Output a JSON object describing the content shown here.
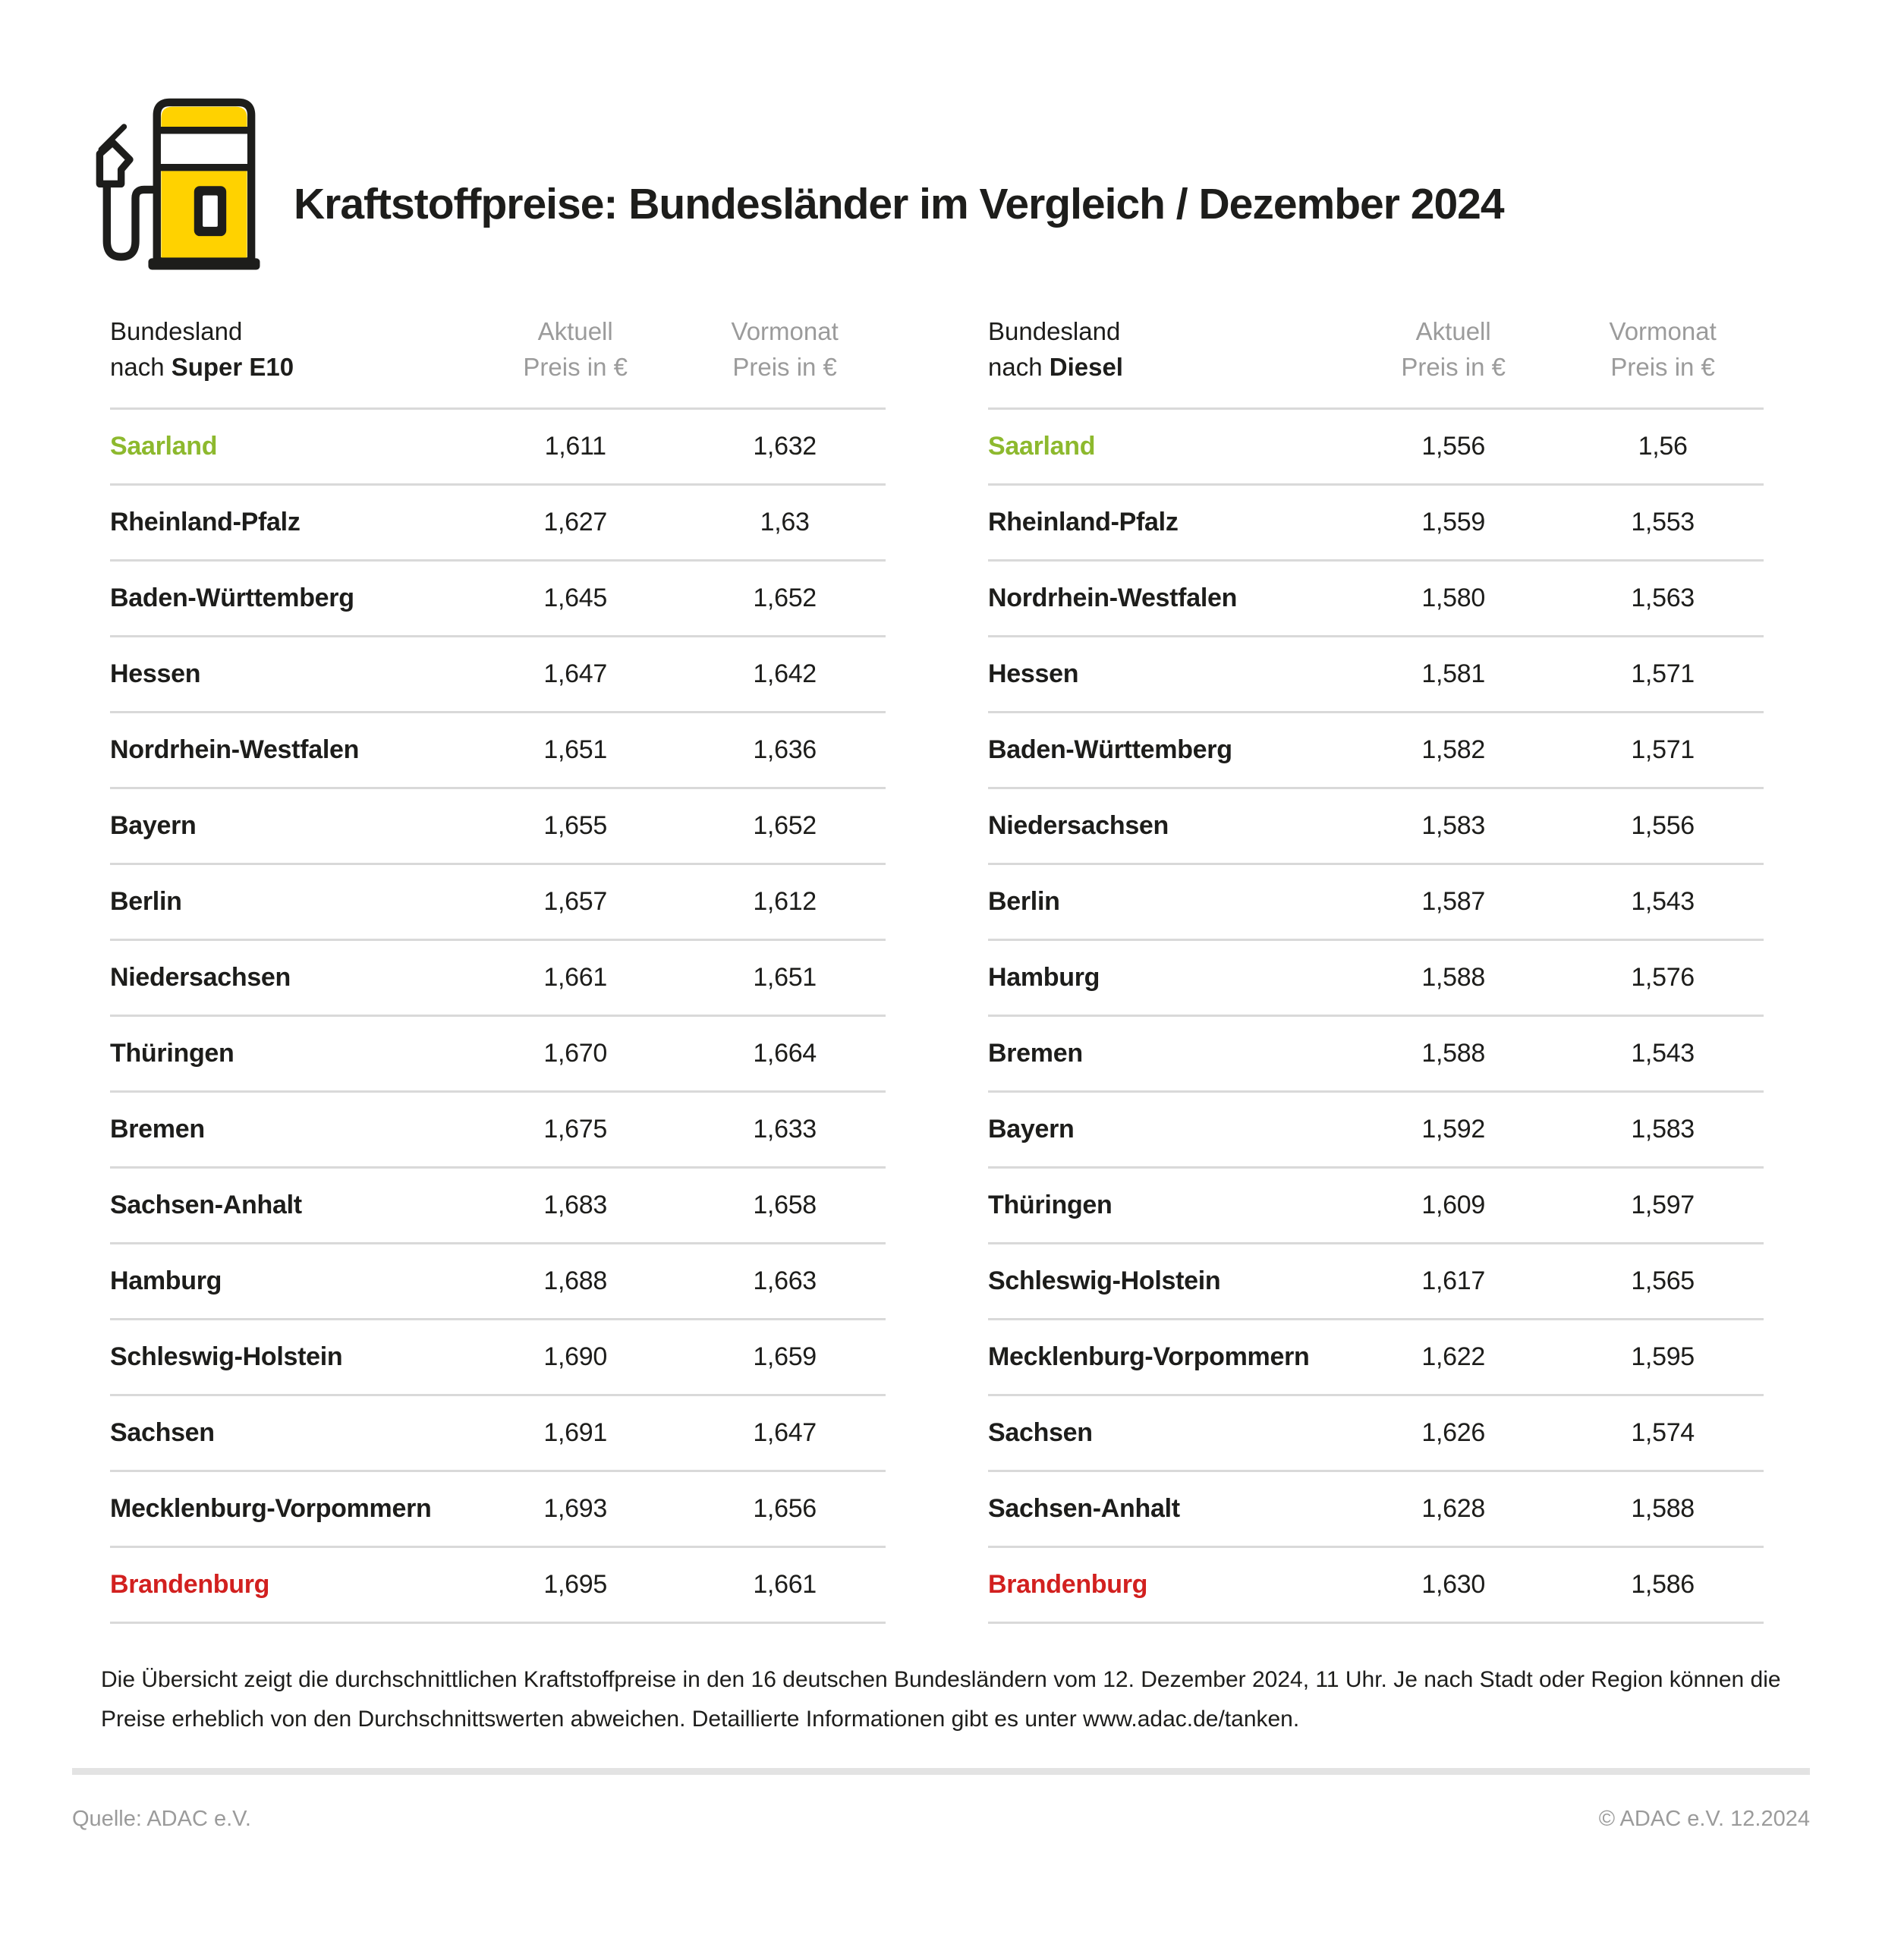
{
  "colors": {
    "yellow": "#FFD200",
    "green": "#8DB92E",
    "red": "#D2201F",
    "gray": "#9B9B9B",
    "divider": "#D9D9D9"
  },
  "header": {
    "title": "Kraftstoffpreise: Bundesländer im Vergleich / Dezember 2024",
    "logo_icon": "fuel-pump-icon"
  },
  "tables": [
    {
      "fuel": "Super E10",
      "col1_line1": "Bundesland",
      "col1_line2_prefix": "nach ",
      "col2_line1": "Aktuell",
      "col2_line2": "Preis in €",
      "col3_line1": "Vormonat",
      "col3_line2": "Preis in €",
      "rows": [
        {
          "state": "Saarland",
          "aktuell": "1,611",
          "vormonat": "1,632",
          "highlight": "green"
        },
        {
          "state": "Rheinland-Pfalz",
          "aktuell": "1,627",
          "vormonat": "1,63",
          "highlight": ""
        },
        {
          "state": "Baden-Württemberg",
          "aktuell": "1,645",
          "vormonat": "1,652",
          "highlight": ""
        },
        {
          "state": "Hessen",
          "aktuell": "1,647",
          "vormonat": "1,642",
          "highlight": ""
        },
        {
          "state": "Nordrhein-Westfalen",
          "aktuell": "1,651",
          "vormonat": "1,636",
          "highlight": ""
        },
        {
          "state": "Bayern",
          "aktuell": "1,655",
          "vormonat": "1,652",
          "highlight": ""
        },
        {
          "state": "Berlin",
          "aktuell": "1,657",
          "vormonat": "1,612",
          "highlight": ""
        },
        {
          "state": "Niedersachsen",
          "aktuell": "1,661",
          "vormonat": "1,651",
          "highlight": ""
        },
        {
          "state": "Thüringen",
          "aktuell": "1,670",
          "vormonat": "1,664",
          "highlight": ""
        },
        {
          "state": "Bremen",
          "aktuell": "1,675",
          "vormonat": "1,633",
          "highlight": ""
        },
        {
          "state": "Sachsen-Anhalt",
          "aktuell": "1,683",
          "vormonat": "1,658",
          "highlight": ""
        },
        {
          "state": "Hamburg",
          "aktuell": "1,688",
          "vormonat": "1,663",
          "highlight": ""
        },
        {
          "state": "Schleswig-Holstein",
          "aktuell": "1,690",
          "vormonat": "1,659",
          "highlight": ""
        },
        {
          "state": "Sachsen",
          "aktuell": "1,691",
          "vormonat": "1,647",
          "highlight": ""
        },
        {
          "state": "Mecklenburg-Vorpommern",
          "aktuell": "1,693",
          "vormonat": "1,656",
          "highlight": ""
        },
        {
          "state": "Brandenburg",
          "aktuell": "1,695",
          "vormonat": "1,661",
          "highlight": "red"
        }
      ]
    },
    {
      "fuel": "Diesel",
      "col1_line1": "Bundesland",
      "col1_line2_prefix": "nach ",
      "col2_line1": "Aktuell",
      "col2_line2": "Preis in €",
      "col3_line1": "Vormonat",
      "col3_line2": "Preis in €",
      "rows": [
        {
          "state": "Saarland",
          "aktuell": "1,556",
          "vormonat": "1,56",
          "highlight": "green"
        },
        {
          "state": "Rheinland-Pfalz",
          "aktuell": "1,559",
          "vormonat": "1,553",
          "highlight": ""
        },
        {
          "state": "Nordrhein-Westfalen",
          "aktuell": "1,580",
          "vormonat": "1,563",
          "highlight": ""
        },
        {
          "state": "Hessen",
          "aktuell": "1,581",
          "vormonat": "1,571",
          "highlight": ""
        },
        {
          "state": "Baden-Württemberg",
          "aktuell": "1,582",
          "vormonat": "1,571",
          "highlight": ""
        },
        {
          "state": "Niedersachsen",
          "aktuell": "1,583",
          "vormonat": "1,556",
          "highlight": ""
        },
        {
          "state": "Berlin",
          "aktuell": "1,587",
          "vormonat": "1,543",
          "highlight": ""
        },
        {
          "state": "Hamburg",
          "aktuell": "1,588",
          "vormonat": "1,576",
          "highlight": ""
        },
        {
          "state": "Bremen",
          "aktuell": "1,588",
          "vormonat": "1,543",
          "highlight": ""
        },
        {
          "state": "Bayern",
          "aktuell": "1,592",
          "vormonat": "1,583",
          "highlight": ""
        },
        {
          "state": "Thüringen",
          "aktuell": "1,609",
          "vormonat": "1,597",
          "highlight": ""
        },
        {
          "state": "Schleswig-Holstein",
          "aktuell": "1,617",
          "vormonat": "1,565",
          "highlight": ""
        },
        {
          "state": "Mecklenburg-Vorpommern",
          "aktuell": "1,622",
          "vormonat": "1,595",
          "highlight": ""
        },
        {
          "state": "Sachsen",
          "aktuell": "1,626",
          "vormonat": "1,574",
          "highlight": ""
        },
        {
          "state": "Sachsen-Anhalt",
          "aktuell": "1,628",
          "vormonat": "1,588",
          "highlight": ""
        },
        {
          "state": "Brandenburg",
          "aktuell": "1,630",
          "vormonat": "1,586",
          "highlight": "red"
        }
      ]
    }
  ],
  "footnote": "Die Übersicht zeigt die durchschnittlichen Kraftstoffpreise in den 16 deutschen Bundesländern vom 12. Dezember 2024, 11 Uhr. Je nach Stadt oder Region können die Preise erheblich von den Durchschnittswerten abweichen. Detaillierte Informationen gibt es unter www.adac.de/tanken.",
  "footer": {
    "source": "Quelle: ADAC e.V.",
    "copyright": "© ADAC e.V. 12.2024"
  },
  "chart_data": [
    {
      "type": "table",
      "title": "Kraftstoffpreise Bundesländer im Vergleich Dezember 2024 – Super E10",
      "columns": [
        "Bundesland nach Super E10",
        "Aktuell Preis in €",
        "Vormonat Preis in €"
      ],
      "rows": [
        [
          "Saarland",
          1.611,
          1.632
        ],
        [
          "Rheinland-Pfalz",
          1.627,
          1.63
        ],
        [
          "Baden-Württemberg",
          1.645,
          1.652
        ],
        [
          "Hessen",
          1.647,
          1.642
        ],
        [
          "Nordrhein-Westfalen",
          1.651,
          1.636
        ],
        [
          "Bayern",
          1.655,
          1.652
        ],
        [
          "Berlin",
          1.657,
          1.612
        ],
        [
          "Niedersachsen",
          1.661,
          1.651
        ],
        [
          "Thüringen",
          1.67,
          1.664
        ],
        [
          "Bremen",
          1.675,
          1.633
        ],
        [
          "Sachsen-Anhalt",
          1.683,
          1.658
        ],
        [
          "Hamburg",
          1.688,
          1.663
        ],
        [
          "Schleswig-Holstein",
          1.69,
          1.659
        ],
        [
          "Sachsen",
          1.691,
          1.647
        ],
        [
          "Mecklenburg-Vorpommern",
          1.693,
          1.656
        ],
        [
          "Brandenburg",
          1.695,
          1.661
        ]
      ],
      "annotations": {
        "cheapest": "Saarland (grün)",
        "most_expensive": "Brandenburg (rot)"
      }
    },
    {
      "type": "table",
      "title": "Kraftstoffpreise Bundesländer im Vergleich Dezember 2024 – Diesel",
      "columns": [
        "Bundesland nach Diesel",
        "Aktuell Preis in €",
        "Vormonat Preis in €"
      ],
      "rows": [
        [
          "Saarland",
          1.556,
          1.56
        ],
        [
          "Rheinland-Pfalz",
          1.559,
          1.553
        ],
        [
          "Nordrhein-Westfalen",
          1.58,
          1.563
        ],
        [
          "Hessen",
          1.581,
          1.571
        ],
        [
          "Baden-Württemberg",
          1.582,
          1.571
        ],
        [
          "Niedersachsen",
          1.583,
          1.556
        ],
        [
          "Berlin",
          1.587,
          1.543
        ],
        [
          "Hamburg",
          1.588,
          1.576
        ],
        [
          "Bremen",
          1.588,
          1.543
        ],
        [
          "Bayern",
          1.592,
          1.583
        ],
        [
          "Thüringen",
          1.609,
          1.597
        ],
        [
          "Schleswig-Holstein",
          1.617,
          1.565
        ],
        [
          "Mecklenburg-Vorpommern",
          1.622,
          1.595
        ],
        [
          "Sachsen",
          1.626,
          1.574
        ],
        [
          "Sachsen-Anhalt",
          1.628,
          1.588
        ],
        [
          "Brandenburg",
          1.63,
          1.586
        ]
      ],
      "annotations": {
        "cheapest": "Saarland (grün)",
        "most_expensive": "Brandenburg (rot)"
      }
    }
  ]
}
